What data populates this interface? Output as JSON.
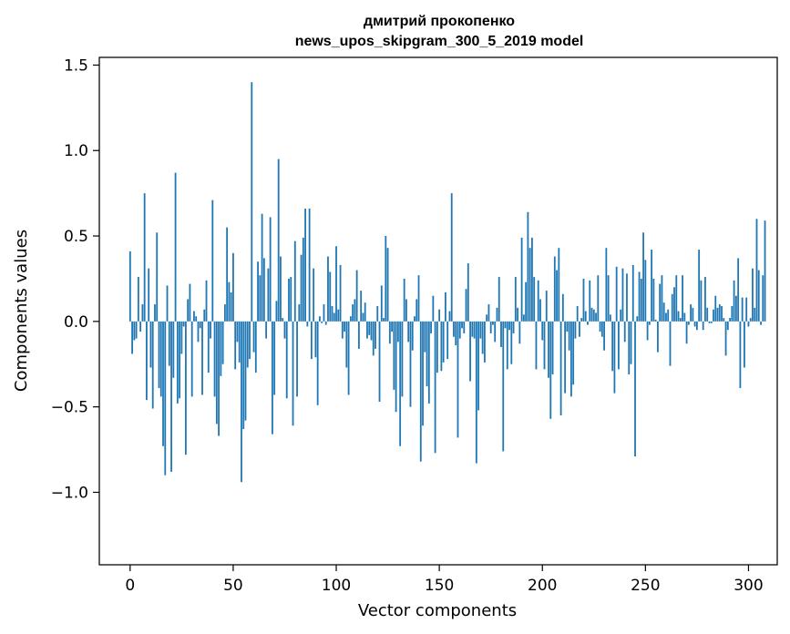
{
  "chart_data": {
    "type": "bar",
    "title_lines": [
      "дмитрий прокопенко",
      "news_upos_skipgram_300_5_2019 model"
    ],
    "xlabel": "Vector components",
    "ylabel": "Components values",
    "xlim": [
      -14.95,
      313.95
    ],
    "ylim": [
      -1.424,
      1.545
    ],
    "xticks": [
      0,
      50,
      100,
      150,
      200,
      250,
      300
    ],
    "xtick_labels": [
      "0",
      "50",
      "100",
      "150",
      "200",
      "250",
      "300"
    ],
    "yticks": [
      -1.0,
      -0.5,
      0.0,
      0.5,
      1.0,
      1.5
    ],
    "ytick_labels": [
      "−1.0",
      "−0.5",
      "0.0",
      "0.5",
      "1.0",
      "1.5"
    ],
    "bar_color": "#1f77b4",
    "grid": false,
    "values": [
      0.41,
      -0.19,
      -0.11,
      -0.1,
      0.26,
      -0.06,
      0.1,
      0.75,
      -0.46,
      0.31,
      -0.27,
      -0.51,
      0.1,
      0.52,
      -0.39,
      -0.44,
      -0.73,
      -0.9,
      0.21,
      -0.26,
      -0.88,
      -0.33,
      0.87,
      -0.48,
      -0.45,
      -0.19,
      -0.03,
      -0.78,
      0.13,
      0.22,
      -0.44,
      0.06,
      0.03,
      -0.12,
      -0.04,
      -0.43,
      0.07,
      0.24,
      -0.3,
      -0.1,
      0.71,
      -0.44,
      -0.6,
      -0.67,
      -0.32,
      -0.25,
      0.1,
      0.55,
      0.23,
      0.17,
      0.4,
      -0.28,
      -0.12,
      -0.24,
      -0.94,
      -0.63,
      -0.58,
      -0.27,
      -0.22,
      1.4,
      -0.18,
      -0.3,
      0.35,
      0.27,
      0.63,
      0.37,
      -0.1,
      0.31,
      0.61,
      -0.66,
      -0.43,
      0.12,
      0.95,
      0.38,
      0.02,
      -0.1,
      -0.45,
      0.25,
      0.26,
      -0.61,
      0.47,
      -0.44,
      0.1,
      0.39,
      0.49,
      0.66,
      -0.03,
      0.66,
      -0.22,
      0.31,
      -0.21,
      -0.49,
      0.03,
      -0.01,
      0.1,
      -0.02,
      0.38,
      0.29,
      0.09,
      0.05,
      0.44,
      0.07,
      0.33,
      -0.1,
      -0.06,
      -0.27,
      -0.43,
      0.03,
      0.1,
      0.13,
      0.3,
      -0.16,
      0.18,
      0.05,
      0.11,
      -0.1,
      -0.08,
      -0.11,
      -0.2,
      -0.16,
      0.09,
      -0.47,
      0.21,
      0.02,
      0.5,
      0.43,
      -0.13,
      -0.06,
      -0.4,
      -0.53,
      -0.12,
      -0.73,
      -0.44,
      0.25,
      0.13,
      -0.12,
      -0.5,
      -0.17,
      0.03,
      0.13,
      0.27,
      -0.82,
      -0.61,
      -0.18,
      -0.38,
      -0.48,
      -0.07,
      0.15,
      -0.77,
      -0.3,
      0.07,
      -0.29,
      -0.24,
      0.17,
      -0.22,
      0.06,
      0.75,
      -0.09,
      -0.14,
      -0.68,
      -0.1,
      -0.04,
      -0.07,
      0.19,
      0.34,
      -0.35,
      -0.09,
      -0.1,
      -0.83,
      -0.52,
      -0.1,
      -0.19,
      -0.24,
      0.04,
      0.1,
      -0.07,
      -0.02,
      -0.12,
      0.08,
      0.26,
      -0.15,
      -0.76,
      -0.04,
      -0.28,
      -0.05,
      -0.25,
      -0.07,
      0.26,
      0.08,
      -0.13,
      0.49,
      0.04,
      0.23,
      0.64,
      0.43,
      0.49,
      0.26,
      -0.28,
      0.24,
      0.13,
      -0.11,
      -0.28,
      0.18,
      -0.33,
      -0.57,
      -0.31,
      0.38,
      0.3,
      0.43,
      -0.55,
      0.16,
      -0.42,
      -0.06,
      -0.17,
      -0.44,
      -0.37,
      -0.1,
      0.09,
      -0.09,
      0.02,
      0.25,
      0.06,
      -0.02,
      0.24,
      0.08,
      0.07,
      0.05,
      0.27,
      -0.06,
      -0.09,
      -0.17,
      0.43,
      0.27,
      0.04,
      -0.29,
      -0.42,
      0.32,
      -0.28,
      0.07,
      0.31,
      -0.12,
      0.28,
      -0.31,
      -0.25,
      0.33,
      -0.79,
      0.03,
      0.29,
      0.25,
      0.52,
      0.36,
      -0.11,
      -0.02,
      0.42,
      0.25,
      0.01,
      -0.18,
      0.22,
      0.27,
      0.11,
      0.05,
      0.07,
      -0.26,
      0.16,
      0.2,
      0.27,
      0.06,
      0.02,
      0.27,
      0.05,
      -0.13,
      -0.02,
      0.1,
      0.08,
      -0.03,
      -0.05,
      0.42,
      0.24,
      -0.05,
      0.26,
      0.08,
      -0.01,
      -0.01,
      0.07,
      0.15,
      0.08,
      0.1,
      0.09,
      0.02,
      -0.2,
      -0.05,
      0.02,
      0.09,
      0.24,
      0.15,
      0.37,
      -0.39,
      0.14,
      -0.27,
      0.14,
      -0.03,
      0.02,
      0.31,
      0.08,
      0.6,
      0.3,
      -0.02,
      0.27,
      0.59
    ]
  }
}
